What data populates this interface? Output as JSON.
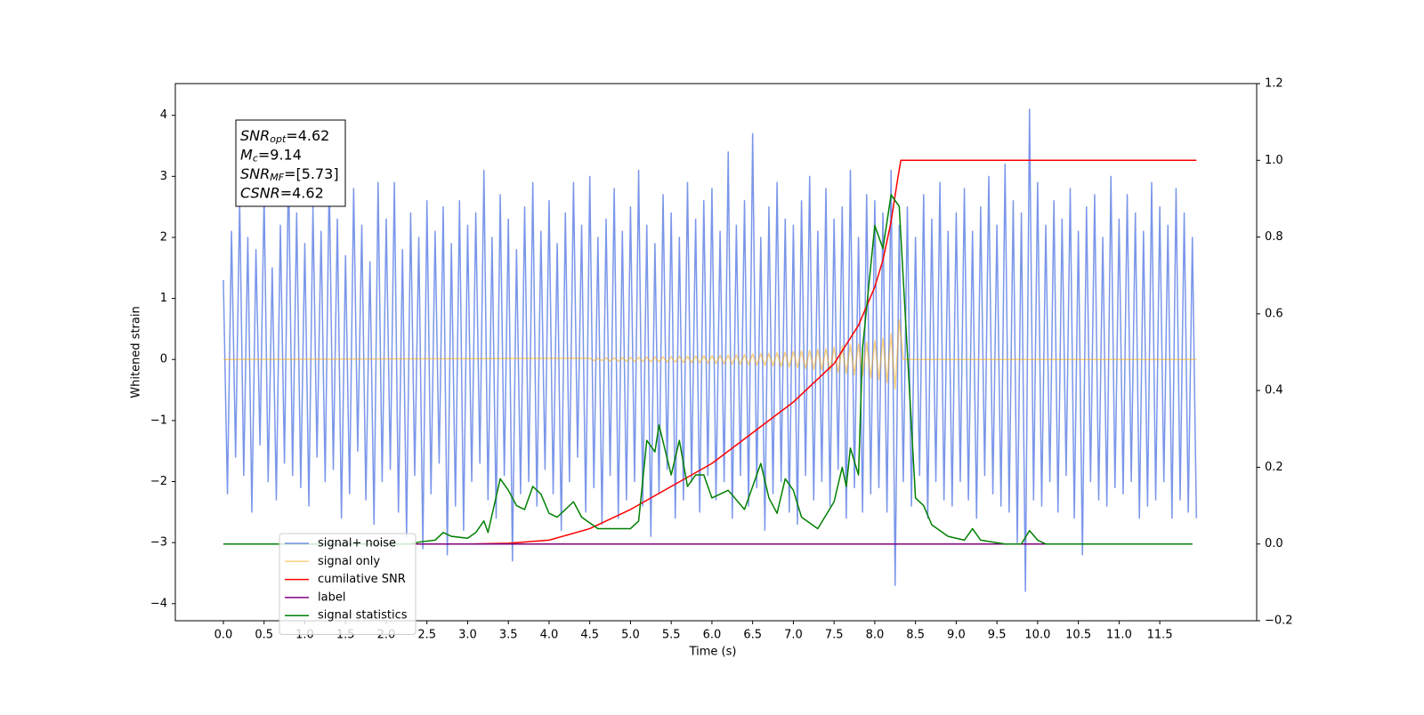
{
  "chart_data": {
    "type": "line",
    "xlabel": "Time (s)",
    "ylabel": "Whitened strain",
    "xlim": [
      -0.59,
      12.69
    ],
    "ylim": [
      -4.28,
      4.52
    ],
    "y2lim": [
      -0.2,
      1.2
    ],
    "xticks": [
      {
        "value": 0,
        "label": "0.0"
      },
      0.5,
      {
        "value": 1,
        "label": "1.0"
      },
      1.5,
      {
        "value": 2,
        "label": "2.0"
      },
      2.5,
      {
        "value": 3,
        "label": "3.0"
      },
      3.5,
      {
        "value": 4,
        "label": "4.0"
      },
      4.5,
      {
        "value": 5,
        "label": "5.0"
      },
      5.5,
      {
        "value": 6,
        "label": "6.0"
      },
      6.5,
      {
        "value": 7,
        "label": "7.0"
      },
      7.5,
      {
        "value": 8,
        "label": "8.0"
      },
      8.5,
      {
        "value": 9,
        "label": "9.0"
      },
      9.5,
      {
        "value": 10,
        "label": "10.0"
      },
      10.5,
      {
        "value": 11,
        "label": "11.0"
      },
      11.5
    ],
    "yticks": [
      {
        "value": -4,
        "label": "−4"
      },
      {
        "value": -3,
        "label": "−3"
      },
      {
        "value": -2,
        "label": "−2"
      },
      {
        "value": -1,
        "label": "−1"
      },
      0,
      1,
      2,
      3,
      4
    ],
    "y2ticks": [
      {
        "value": -0.2,
        "label": "−0.2"
      },
      {
        "value": 0,
        "label": "0.0"
      },
      0.2,
      0.4,
      0.6,
      0.8,
      {
        "value": 1,
        "label": "1.0"
      },
      1.2
    ],
    "legend": "lower left",
    "annotations": [
      {
        "main": "SNR",
        "sub": "opt",
        "text": "=4.62"
      },
      {
        "main": "M",
        "sub": "c",
        "text": "=9.14"
      },
      {
        "main": "SNR",
        "sub": "MF",
        "text": "=[5.73]"
      },
      {
        "main": "CSNR",
        "sub": null,
        "text": "=4.62"
      }
    ],
    "series": [
      {
        "name": "signal+ noise",
        "color": "#4169e1",
        "alpha": 0.7,
        "axis": "y",
        "x": [
          0,
          0.05,
          0.1,
          0.15,
          0.2,
          0.25,
          0.3,
          0.35,
          0.4,
          0.45,
          0.5,
          0.55,
          0.6,
          0.65,
          0.7,
          0.75,
          0.8,
          0.85,
          0.9,
          0.95,
          1,
          1.05,
          1.1,
          1.15,
          1.2,
          1.25,
          1.3,
          1.35,
          1.4,
          1.45,
          1.5,
          1.55,
          1.6,
          1.65,
          1.7,
          1.75,
          1.8,
          1.85,
          1.9,
          1.95,
          2,
          2.05,
          2.1,
          2.15,
          2.2,
          2.25,
          2.3,
          2.35,
          2.4,
          2.45,
          2.5,
          2.55,
          2.6,
          2.65,
          2.7,
          2.75,
          2.8,
          2.85,
          2.9,
          2.95,
          3,
          3.05,
          3.1,
          3.15,
          3.2,
          3.25,
          3.3,
          3.35,
          3.4,
          3.45,
          3.5,
          3.55,
          3.6,
          3.65,
          3.7,
          3.75,
          3.8,
          3.85,
          3.9,
          3.95,
          4,
          4.05,
          4.1,
          4.15,
          4.2,
          4.25,
          4.3,
          4.35,
          4.4,
          4.45,
          4.5,
          4.55,
          4.6,
          4.65,
          4.7,
          4.75,
          4.8,
          4.85,
          4.9,
          4.95,
          5,
          5.05,
          5.1,
          5.15,
          5.2,
          5.25,
          5.3,
          5.35,
          5.4,
          5.45,
          5.5,
          5.55,
          5.6,
          5.65,
          5.7,
          5.75,
          5.8,
          5.85,
          5.9,
          5.95,
          6,
          6.05,
          6.1,
          6.15,
          6.2,
          6.25,
          6.3,
          6.35,
          6.4,
          6.45,
          6.5,
          6.55,
          6.6,
          6.65,
          6.7,
          6.75,
          6.8,
          6.85,
          6.9,
          6.95,
          7,
          7.05,
          7.1,
          7.15,
          7.2,
          7.25,
          7.3,
          7.35,
          7.4,
          7.45,
          7.5,
          7.55,
          7.6,
          7.65,
          7.7,
          7.75,
          7.8,
          7.85,
          7.9,
          7.95,
          8,
          8.05,
          8.1,
          8.15,
          8.2,
          8.25,
          8.3,
          8.35,
          8.4,
          8.45,
          8.5,
          8.55,
          8.6,
          8.65,
          8.7,
          8.75,
          8.8,
          8.85,
          8.9,
          8.95,
          9,
          9.05,
          9.1,
          9.15,
          9.2,
          9.25,
          9.3,
          9.35,
          9.4,
          9.45,
          9.5,
          9.55,
          9.6,
          9.65,
          9.7,
          9.75,
          9.8,
          9.85,
          9.9,
          9.95,
          10,
          10.05,
          10.1,
          10.15,
          10.2,
          10.25,
          10.3,
          10.35,
          10.4,
          10.45,
          10.5,
          10.55,
          10.6,
          10.65,
          10.7,
          10.75,
          10.8,
          10.85,
          10.9,
          10.95,
          11,
          11.05,
          11.1,
          11.15,
          11.2,
          11.25,
          11.3,
          11.35,
          11.4,
          11.45,
          11.5,
          11.55,
          11.6,
          11.65,
          11.7,
          11.75,
          11.8,
          11.85,
          11.9,
          11.95
        ],
        "values": [
          1.3,
          -2.2,
          2.1,
          -1.6,
          2.6,
          -1.9,
          2.0,
          -2.5,
          1.8,
          -1.4,
          2.7,
          -2.0,
          1.5,
          -2.3,
          2.2,
          -1.7,
          3.2,
          -1.9,
          2.4,
          -2.1,
          1.9,
          -2.4,
          2.5,
          -1.6,
          2.1,
          -2.0,
          3.0,
          -1.8,
          2.3,
          -2.6,
          1.7,
          -2.2,
          2.8,
          -1.5,
          2.2,
          -2.3,
          1.6,
          -2.7,
          2.9,
          -2.0,
          2.3,
          -1.8,
          2.9,
          -2.5,
          1.8,
          -2.9,
          2.4,
          -1.9,
          2.0,
          -3.1,
          2.6,
          -2.2,
          2.1,
          -1.7,
          2.5,
          -3.2,
          1.9,
          -2.4,
          2.6,
          -2.8,
          2.2,
          -2.0,
          2.4,
          -1.7,
          3.1,
          -2.3,
          2.0,
          -2.6,
          2.7,
          -1.9,
          2.3,
          -3.3,
          1.8,
          -2.2,
          2.5,
          -2.0,
          2.9,
          -2.4,
          2.1,
          -1.8,
          2.6,
          -2.2,
          1.9,
          -2.8,
          2.4,
          -2.0,
          2.9,
          -1.6,
          2.2,
          -2.5,
          3.0,
          -2.1,
          2.0,
          -2.7,
          2.3,
          -1.9,
          2.8,
          -2.6,
          2.1,
          -2.3,
          2.5,
          -2.0,
          3.1,
          -2.4,
          2.2,
          -2.9,
          1.9,
          -2.2,
          2.7,
          -1.8,
          2.4,
          -2.6,
          2.0,
          -2.3,
          2.9,
          -2.0,
          2.3,
          -2.5,
          2.6,
          -1.9,
          2.8,
          -2.3,
          2.1,
          -2.0,
          3.4,
          -2.6,
          2.2,
          -1.9,
          2.6,
          -2.4,
          3.7,
          -2.1,
          2.0,
          -2.8,
          2.5,
          -2.2,
          2.9,
          -2.0,
          2.3,
          -2.5,
          2.2,
          -2.7,
          2.6,
          -1.9,
          3.0,
          -2.3,
          2.1,
          -2.0,
          2.8,
          -2.4,
          2.3,
          -1.8,
          2.5,
          -2.6,
          3.1,
          -2.1,
          2.0,
          -2.5,
          2.7,
          -2.2,
          2.6,
          -2.1,
          2.4,
          -2.5,
          3.1,
          -3.7,
          2.2,
          -2.0,
          2.5,
          -2.4,
          2.0,
          -1.9,
          2.7,
          -2.6,
          2.3,
          -2.0,
          2.9,
          -2.3,
          2.1,
          -2.4,
          2.4,
          -2.0,
          2.8,
          -2.3,
          2.1,
          -2.6,
          2.5,
          -1.9,
          3.0,
          -2.2,
          2.2,
          -2.4,
          3.2,
          -2.5,
          2.6,
          -3.0,
          2.4,
          -3.8,
          4.1,
          -2.3,
          2.9,
          -2.4,
          2.2,
          -2.0,
          2.6,
          -2.5,
          2.3,
          -1.9,
          2.8,
          -2.6,
          2.1,
          -3.2,
          2.5,
          -2.0,
          2.7,
          -2.3,
          2.0,
          -2.4,
          3.0,
          -2.1,
          2.3,
          -2.2,
          2.7,
          -2.0,
          2.4,
          -2.6,
          2.1,
          -2.4,
          2.9,
          -2.3,
          2.5,
          -2.0,
          2.2,
          -2.6,
          2.8,
          -2.3,
          2.4,
          -2.5,
          2.0,
          -2.6
        ]
      },
      {
        "name": "signal only",
        "color": "#ffa500",
        "alpha": 0.5,
        "axis": "y",
        "x": [
          0,
          4.5,
          4.55,
          4.6,
          4.65,
          4.7,
          4.75,
          4.8,
          4.85,
          4.9,
          4.95,
          5,
          5.05,
          5.1,
          5.15,
          5.2,
          5.25,
          5.3,
          5.35,
          5.4,
          5.45,
          5.5,
          5.55,
          5.6,
          5.65,
          5.7,
          5.75,
          5.8,
          5.85,
          5.9,
          5.95,
          6,
          6.05,
          6.1,
          6.15,
          6.2,
          6.25,
          6.3,
          6.35,
          6.4,
          6.45,
          6.5,
          6.55,
          6.6,
          6.65,
          6.7,
          6.75,
          6.8,
          6.85,
          6.9,
          6.95,
          7,
          7.05,
          7.1,
          7.15,
          7.2,
          7.25,
          7.3,
          7.35,
          7.4,
          7.45,
          7.5,
          7.55,
          7.6,
          7.65,
          7.7,
          7.75,
          7.8,
          7.85,
          7.9,
          7.95,
          8,
          8.05,
          8.1,
          8.15,
          8.2,
          8.25,
          8.3,
          8.35,
          11.95
        ],
        "values": [
          0,
          0.02,
          -0.02,
          0.02,
          -0.02,
          0.03,
          -0.03,
          0.03,
          -0.03,
          0.03,
          -0.03,
          0.035,
          -0.035,
          0.035,
          -0.035,
          0.04,
          -0.04,
          0.04,
          -0.04,
          0.045,
          -0.045,
          0.045,
          -0.045,
          0.05,
          -0.05,
          0.05,
          -0.05,
          0.055,
          -0.055,
          0.06,
          -0.06,
          0.06,
          -0.065,
          0.065,
          -0.07,
          0.07,
          -0.075,
          0.075,
          -0.08,
          0.08,
          -0.085,
          0.09,
          -0.09,
          0.095,
          -0.1,
          0.1,
          -0.105,
          0.11,
          -0.115,
          0.12,
          -0.125,
          0.13,
          -0.135,
          0.14,
          -0.145,
          0.15,
          -0.16,
          0.165,
          -0.17,
          0.18,
          -0.19,
          0.2,
          -0.21,
          0.22,
          -0.23,
          0.24,
          -0.25,
          0.26,
          -0.27,
          0.28,
          -0.3,
          0.31,
          -0.33,
          0.35,
          -0.38,
          0.42,
          -0.48,
          0.65,
          0,
          0
        ]
      },
      {
        "name": "cumilative SNR",
        "color": "#ff0000",
        "alpha": 1,
        "axis": "y2",
        "x": [
          0,
          3.0,
          3.5,
          4.0,
          4.5,
          5.0,
          5.5,
          6.0,
          6.5,
          7.0,
          7.5,
          7.8,
          8.0,
          8.1,
          8.2,
          8.28,
          8.32,
          11.95
        ],
        "values": [
          0,
          0,
          0.002,
          0.01,
          0.04,
          0.09,
          0.15,
          0.21,
          0.29,
          0.37,
          0.47,
          0.57,
          0.67,
          0.74,
          0.84,
          0.95,
          1.0,
          1.0
        ]
      },
      {
        "name": "label",
        "color": "#800080",
        "alpha": 1,
        "axis": "y2",
        "x": [
          0,
          11.9
        ],
        "values": [
          0,
          0
        ]
      },
      {
        "name": "signal statistics",
        "color": "#008000",
        "alpha": 1,
        "axis": "y2",
        "x": [
          0,
          2.3,
          2.4,
          2.6,
          2.7,
          2.8,
          3.0,
          3.1,
          3.2,
          3.25,
          3.4,
          3.5,
          3.6,
          3.7,
          3.8,
          3.9,
          4.0,
          4.1,
          4.3,
          4.4,
          4.6,
          4.8,
          5.0,
          5.1,
          5.2,
          5.3,
          5.35,
          5.5,
          5.6,
          5.7,
          5.8,
          5.9,
          6.0,
          6.2,
          6.4,
          6.6,
          6.7,
          6.8,
          6.9,
          7.0,
          7.1,
          7.3,
          7.5,
          7.6,
          7.65,
          7.7,
          7.8,
          7.85,
          8.0,
          8.1,
          8.2,
          8.3,
          8.4,
          8.5,
          8.6,
          8.7,
          8.9,
          9.1,
          9.2,
          9.3,
          9.6,
          9.8,
          9.9,
          10.0,
          10.1,
          11.9
        ],
        "values": [
          0,
          0,
          0.005,
          0.01,
          0.03,
          0.02,
          0.015,
          0.03,
          0.06,
          0.03,
          0.17,
          0.14,
          0.1,
          0.09,
          0.15,
          0.13,
          0.08,
          0.07,
          0.11,
          0.07,
          0.04,
          0.04,
          0.04,
          0.06,
          0.27,
          0.24,
          0.31,
          0.18,
          0.27,
          0.15,
          0.18,
          0.18,
          0.12,
          0.14,
          0.09,
          0.21,
          0.12,
          0.08,
          0.17,
          0.14,
          0.07,
          0.04,
          0.11,
          0.2,
          0.15,
          0.25,
          0.18,
          0.51,
          0.83,
          0.77,
          0.91,
          0.88,
          0.5,
          0.12,
          0.1,
          0.05,
          0.02,
          0.01,
          0.04,
          0.01,
          0,
          0,
          0.035,
          0.01,
          0,
          0
        ]
      }
    ]
  }
}
